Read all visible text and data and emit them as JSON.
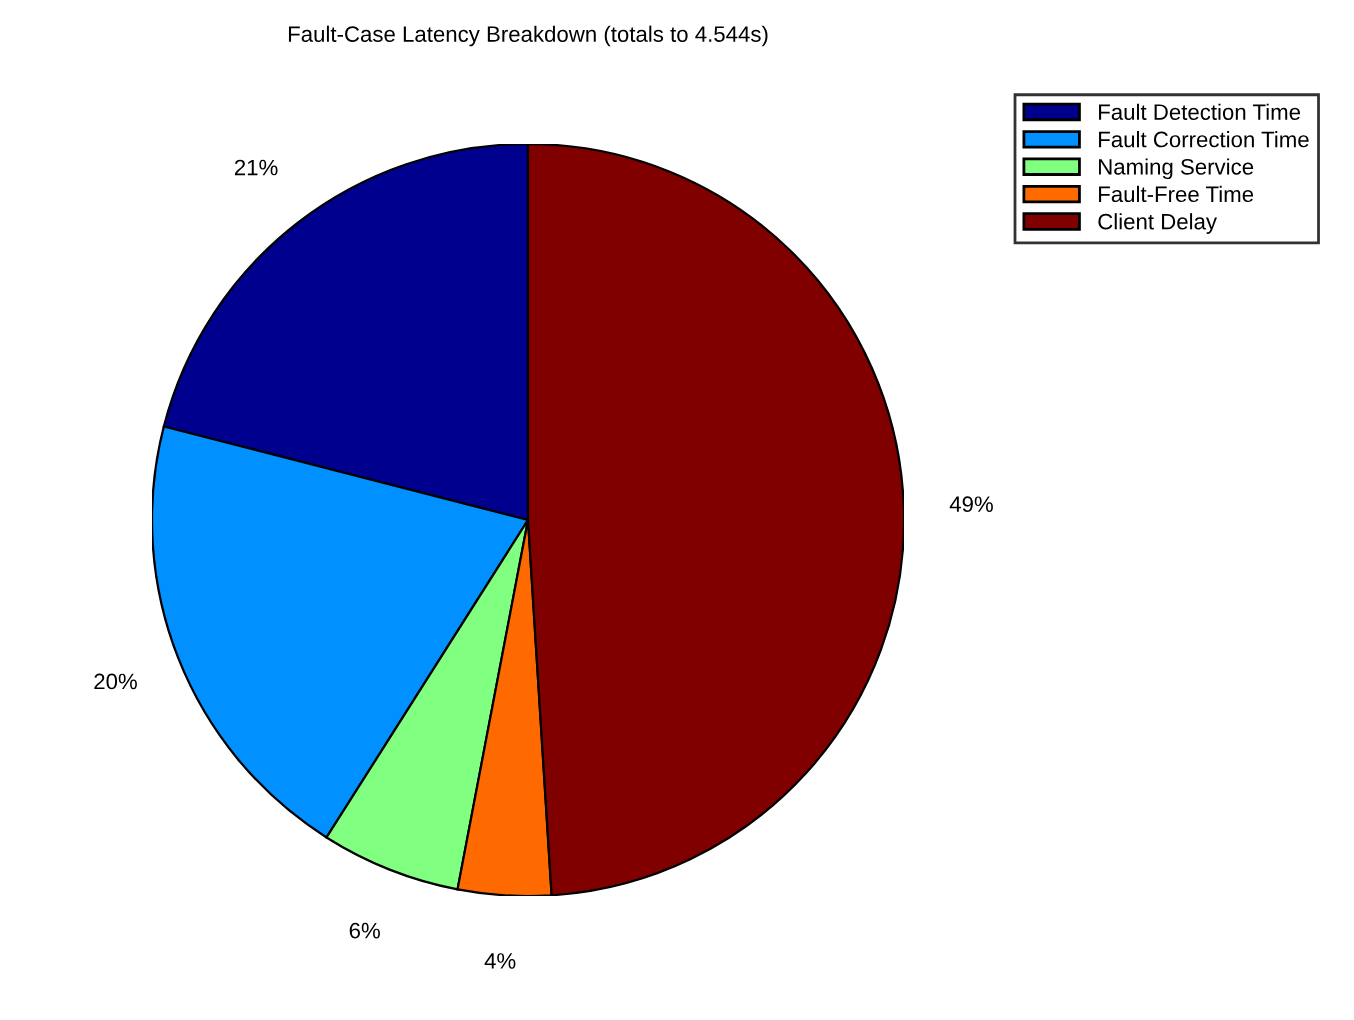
{
  "chart_data": {
    "type": "pie",
    "title": "Fault-Case Latency Breakdown (totals to 4.544s)",
    "categories": [
      "Fault Detection Time",
      "Fault Correction Time",
      "Naming Service",
      "Fault-Free Time",
      "Client Delay"
    ],
    "values": [
      21,
      20,
      6,
      4,
      49
    ],
    "colors": [
      "#00008f",
      "#0090ff",
      "#80ff80",
      "#ff6a00",
      "#800000"
    ],
    "value_labels": [
      "21%",
      "20%",
      "6%",
      "4%",
      "49%"
    ],
    "legend": "top right"
  }
}
